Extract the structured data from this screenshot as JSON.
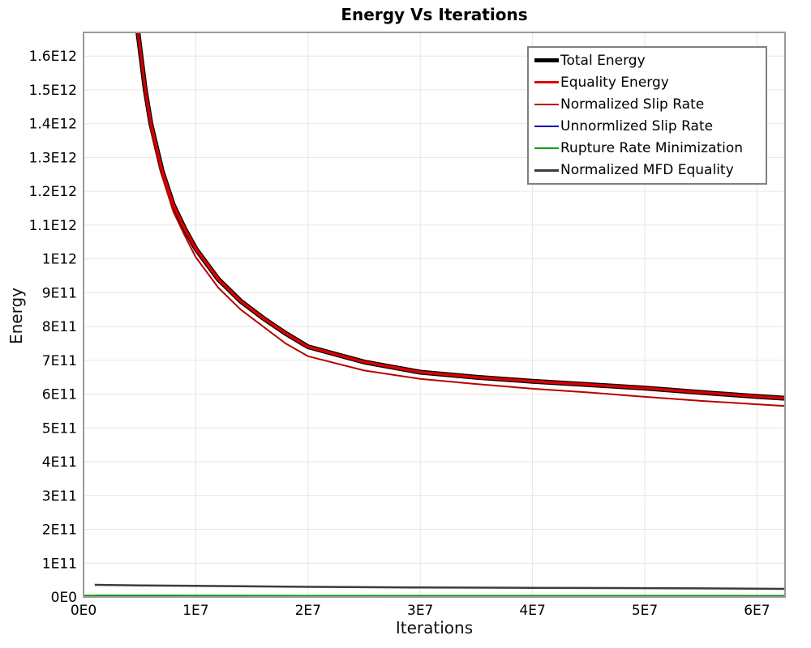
{
  "chart_data": {
    "type": "line",
    "title": "Energy Vs Iterations",
    "xlabel": "Iterations",
    "ylabel": "Energy",
    "xlim": [
      0,
      62500000.0
    ],
    "ylim": [
      0,
      1670000000000.0
    ],
    "grid": true,
    "legend_position": "top-right",
    "x_ticks": {
      "values": [
        0,
        10000000.0,
        20000000.0,
        30000000.0,
        40000000.0,
        50000000.0,
        60000000.0
      ],
      "labels": [
        "0E0",
        "1E7",
        "2E7",
        "3E7",
        "4E7",
        "5E7",
        "6E7"
      ]
    },
    "y_ticks": {
      "values": [
        0,
        100000000000.0,
        200000000000.0,
        300000000000.0,
        400000000000.0,
        500000000000.0,
        600000000000.0,
        700000000000.0,
        800000000000.0,
        900000000000.0,
        1000000000000.0,
        1100000000000.0,
        1200000000000.0,
        1300000000000.0,
        1400000000000.0,
        1500000000000.0,
        1600000000000.0
      ],
      "labels": [
        "0E0",
        "1E11",
        "2E11",
        "3E11",
        "4E11",
        "5E11",
        "6E11",
        "7E11",
        "8E11",
        "9E11",
        "1E12",
        "1.1E12",
        "1.2E12",
        "1.3E12",
        "1.4E12",
        "1.5E12",
        "1.6E12"
      ]
    },
    "colors": {
      "grid": "#e6e6e6",
      "plot_border": "#9a9a9a",
      "total_energy": "#000000",
      "equality_energy": "#dd0000",
      "normalized_slip_rate": "#bb0000",
      "unnormlized_slip_rate": "#0000b0",
      "rupture_rate_minimization": "#00a000",
      "normalized_mfd_equality": "#3c3c3c"
    },
    "series": [
      {
        "name": "Total Energy",
        "color": "#000000",
        "line_width": 6,
        "points": [
          [
            3000000.0,
            3000000000000.0
          ],
          [
            4850000.0,
            1670000000000.0
          ],
          [
            5500000.0,
            1500000000000.0
          ],
          [
            6000000.0,
            1400000000000.0
          ],
          [
            7000000.0,
            1260000000000.0
          ],
          [
            8000000.0,
            1160000000000.0
          ],
          [
            9000000.0,
            1090000000000.0
          ],
          [
            10000000.0,
            1030000000000.0
          ],
          [
            12000000.0,
            940000000000.0
          ],
          [
            14000000.0,
            875000000000.0
          ],
          [
            16000000.0,
            825000000000.0
          ],
          [
            18000000.0,
            780000000000.0
          ],
          [
            20000000.0,
            740000000000.0
          ],
          [
            25000000.0,
            695000000000.0
          ],
          [
            30000000.0,
            665000000000.0
          ],
          [
            35000000.0,
            650000000000.0
          ],
          [
            40000000.0,
            638000000000.0
          ],
          [
            45000000.0,
            628000000000.0
          ],
          [
            50000000.0,
            618000000000.0
          ],
          [
            55000000.0,
            605000000000.0
          ],
          [
            60000000.0,
            593000000000.0
          ],
          [
            62500000.0,
            588000000000.0
          ]
        ]
      },
      {
        "name": "Equality Energy",
        "color": "#dd0000",
        "line_width": 3.5,
        "points": [
          [
            3000000.0,
            3000000000000.0
          ],
          [
            4850000.0,
            1670000000000.0
          ],
          [
            5500000.0,
            1500000000000.0
          ],
          [
            6000000.0,
            1400000000000.0
          ],
          [
            7000000.0,
            1260000000000.0
          ],
          [
            8000000.0,
            1160000000000.0
          ],
          [
            9000000.0,
            1090000000000.0
          ],
          [
            10000000.0,
            1030000000000.0
          ],
          [
            12000000.0,
            940000000000.0
          ],
          [
            14000000.0,
            875000000000.0
          ],
          [
            16000000.0,
            825000000000.0
          ],
          [
            18000000.0,
            780000000000.0
          ],
          [
            20000000.0,
            740000000000.0
          ],
          [
            25000000.0,
            695000000000.0
          ],
          [
            30000000.0,
            665000000000.0
          ],
          [
            35000000.0,
            650000000000.0
          ],
          [
            40000000.0,
            638000000000.0
          ],
          [
            45000000.0,
            628000000000.0
          ],
          [
            50000000.0,
            618000000000.0
          ],
          [
            55000000.0,
            605000000000.0
          ],
          [
            60000000.0,
            593000000000.0
          ],
          [
            62500000.0,
            588000000000.0
          ]
        ]
      },
      {
        "name": "Normalized Slip Rate",
        "color": "#bb0000",
        "line_width": 2,
        "points": [
          [
            3000000.0,
            2970000000000.0
          ],
          [
            4850000.0,
            1655000000000.0
          ],
          [
            5500000.0,
            1485000000000.0
          ],
          [
            6000000.0,
            1385000000000.0
          ],
          [
            7000000.0,
            1245000000000.0
          ],
          [
            8000000.0,
            1140000000000.0
          ],
          [
            9000000.0,
            1070000000000.0
          ],
          [
            10000000.0,
            1005000000000.0
          ],
          [
            12000000.0,
            915000000000.0
          ],
          [
            14000000.0,
            850000000000.0
          ],
          [
            16000000.0,
            800000000000.0
          ],
          [
            18000000.0,
            750000000000.0
          ],
          [
            20000000.0,
            712000000000.0
          ],
          [
            25000000.0,
            670000000000.0
          ],
          [
            30000000.0,
            645000000000.0
          ],
          [
            35000000.0,
            630000000000.0
          ],
          [
            40000000.0,
            616000000000.0
          ],
          [
            45000000.0,
            605000000000.0
          ],
          [
            50000000.0,
            592000000000.0
          ],
          [
            55000000.0,
            580000000000.0
          ],
          [
            60000000.0,
            570000000000.0
          ],
          [
            62500000.0,
            565000000000.0
          ]
        ]
      },
      {
        "name": "Unnormlized Slip Rate",
        "color": "#0000b0",
        "line_width": 2,
        "points": [
          [
            1000000.0,
            4000000000.0
          ],
          [
            10000000.0,
            3800000000.0
          ],
          [
            30000000.0,
            3300000000.0
          ],
          [
            62500000.0,
            3000000000.0
          ]
        ]
      },
      {
        "name": "Rupture Rate Minimization",
        "color": "#00a000",
        "line_width": 2,
        "points": [
          [
            0,
            4000000000.0
          ],
          [
            10000000.0,
            3800000000.0
          ],
          [
            30000000.0,
            3300000000.0
          ],
          [
            62500000.0,
            3000000000.0
          ]
        ]
      },
      {
        "name": "Normalized MFD Equality",
        "color": "#3c3c3c",
        "line_width": 2.5,
        "points": [
          [
            1000000.0,
            36000000000.0
          ],
          [
            5000000.0,
            34000000000.0
          ],
          [
            10000000.0,
            33000000000.0
          ],
          [
            15000000.0,
            31500000000.0
          ],
          [
            20000000.0,
            30000000000.0
          ],
          [
            25000000.0,
            29000000000.0
          ],
          [
            30000000.0,
            28000000000.0
          ],
          [
            40000000.0,
            27000000000.0
          ],
          [
            50000000.0,
            26000000000.0
          ],
          [
            55000000.0,
            25500000000.0
          ],
          [
            62500000.0,
            24000000000.0
          ]
        ]
      }
    ]
  }
}
